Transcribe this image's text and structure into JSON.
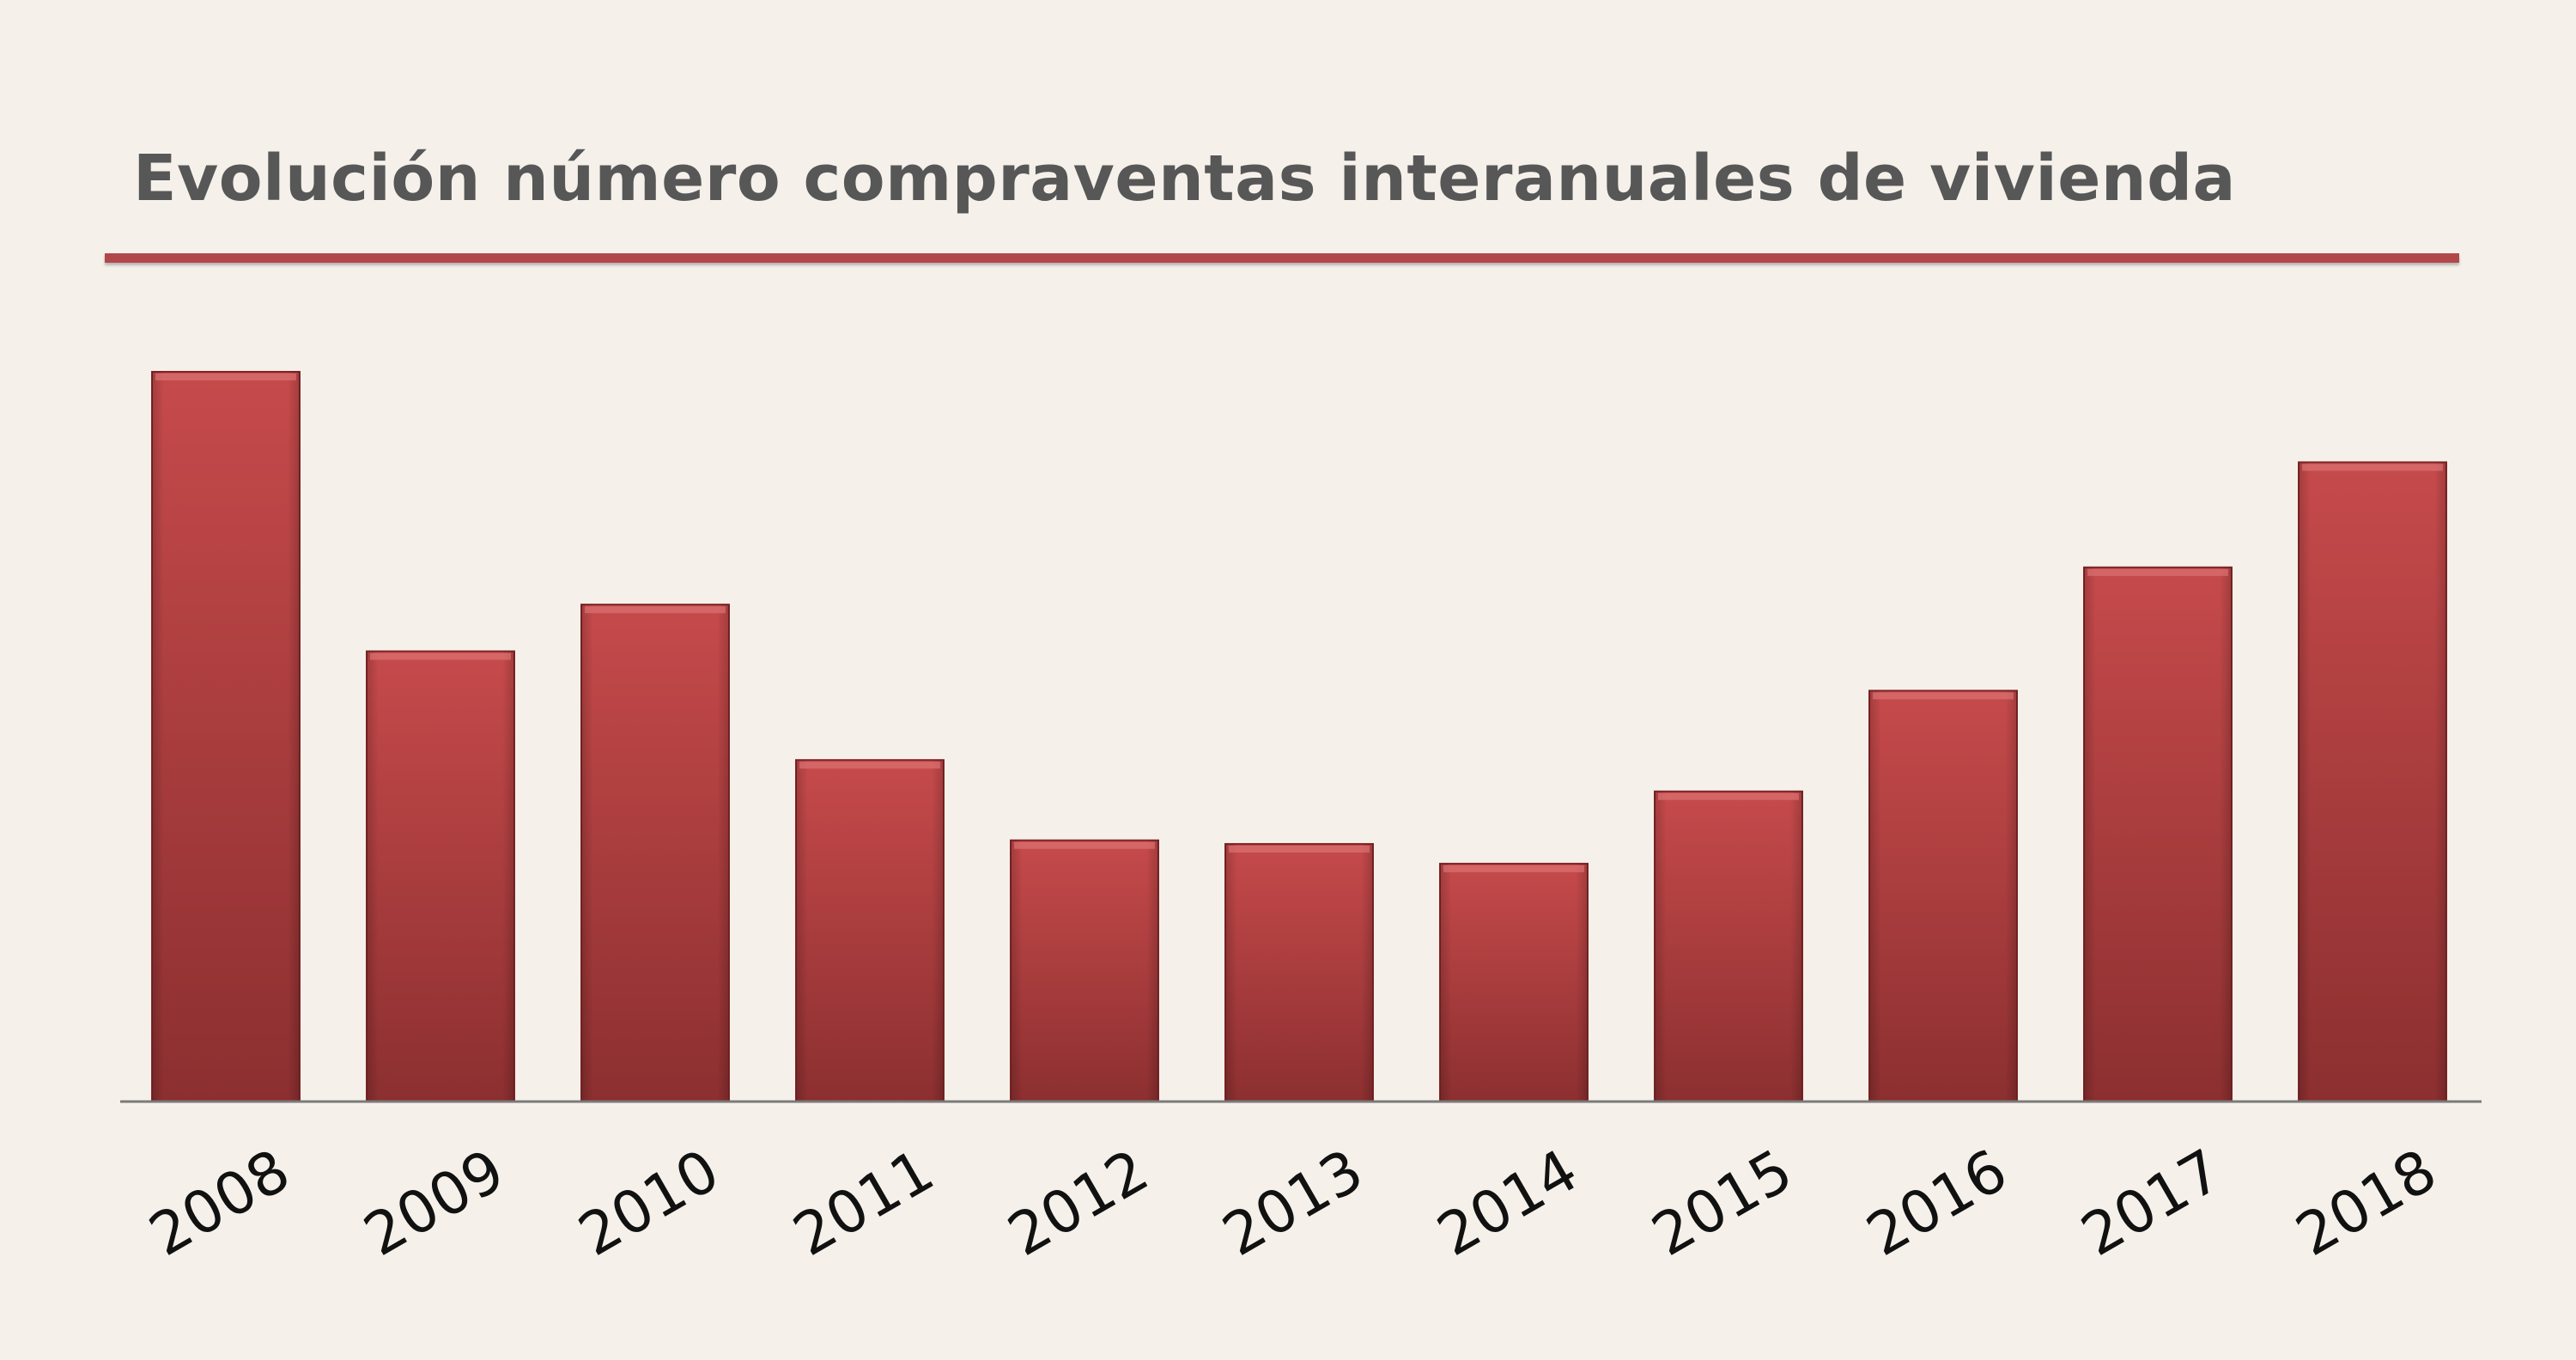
{
  "chart_data": {
    "type": "bar",
    "title": "Evolución número compraventas interanuales de vivienda",
    "categories": [
      "2008",
      "2009",
      "2010",
      "2011",
      "2012",
      "2013",
      "2014",
      "2015",
      "2016",
      "2017",
      "2018"
    ],
    "values": [
      100,
      61.7,
      68.1,
      46.8,
      35.8,
      35.3,
      32.6,
      42.5,
      56.3,
      73.2,
      87.6
    ],
    "ylim": [
      0,
      100
    ],
    "grid": false,
    "legend": "none",
    "colors": {
      "bar": "#bf4446",
      "bar_dark": "#8e2f30",
      "axis": "#777777"
    }
  }
}
